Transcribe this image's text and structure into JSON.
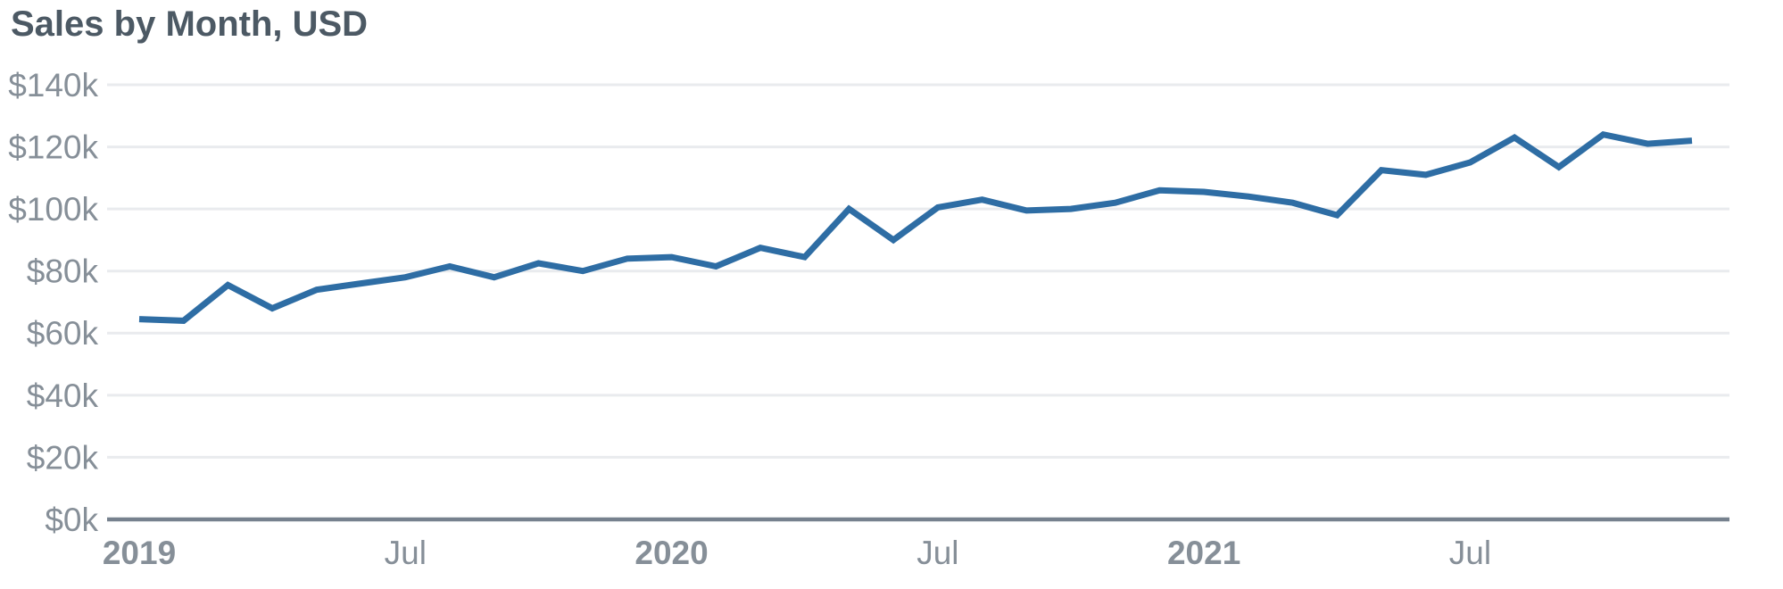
{
  "chart_data": {
    "type": "line",
    "title": "Sales by Month, USD",
    "unit": "USD thousands",
    "legend": "none",
    "grid": "horizontal",
    "categories": [
      "Jan 2019",
      "Feb 2019",
      "Mar 2019",
      "Apr 2019",
      "May 2019",
      "Jun 2019",
      "Jul 2019",
      "Aug 2019",
      "Sep 2019",
      "Oct 2019",
      "Nov 2019",
      "Dec 2019",
      "Jan 2020",
      "Feb 2020",
      "Mar 2020",
      "Apr 2020",
      "May 2020",
      "Jun 2020",
      "Jul 2020",
      "Aug 2020",
      "Sep 2020",
      "Oct 2020",
      "Nov 2020",
      "Dec 2020",
      "Jan 2021",
      "Feb 2021",
      "Mar 2021",
      "Apr 2021",
      "May 2021",
      "Jun 2021",
      "Jul 2021",
      "Aug 2021",
      "Sep 2021",
      "Oct 2021",
      "Nov 2021",
      "Dec 2021"
    ],
    "series": [
      {
        "name": "Sales",
        "values": [
          64.5,
          64,
          75.5,
          68,
          74,
          76,
          78,
          81.5,
          78,
          82.5,
          80,
          84,
          84.5,
          81.5,
          87.5,
          84.5,
          100,
          90,
          100.5,
          103,
          99.5,
          100,
          102,
          106,
          105.5,
          104,
          102,
          98,
          112.5,
          111,
          115,
          123,
          113.5,
          124,
          121,
          122
        ]
      }
    ],
    "ylim": [
      0,
      140
    ],
    "y_axis": {
      "ticks": [
        {
          "label": "$0k",
          "value": 0
        },
        {
          "label": "$20k",
          "value": 20
        },
        {
          "label": "$40k",
          "value": 40
        },
        {
          "label": "$60k",
          "value": 60
        },
        {
          "label": "$80k",
          "value": 80
        },
        {
          "label": "$100k",
          "value": 100
        },
        {
          "label": "$120k",
          "value": 120
        },
        {
          "label": "$140k",
          "value": 140
        }
      ]
    },
    "x_axis": {
      "ticks": [
        {
          "label": "2019",
          "month_index": 0,
          "bold": true
        },
        {
          "label": "Jul",
          "month_index": 6,
          "bold": false
        },
        {
          "label": "2020",
          "month_index": 12,
          "bold": true
        },
        {
          "label": "Jul",
          "month_index": 18,
          "bold": false
        },
        {
          "label": "2021",
          "month_index": 24,
          "bold": true
        },
        {
          "label": "Jul",
          "month_index": 30,
          "bold": false
        }
      ]
    },
    "colors": {
      "line": "#2e6da4",
      "title": "#4c5964",
      "tick_label": "#868f98",
      "gridline": "#e9ebee",
      "zero_axis_line": "#76818e",
      "background": "#ffffff"
    }
  }
}
